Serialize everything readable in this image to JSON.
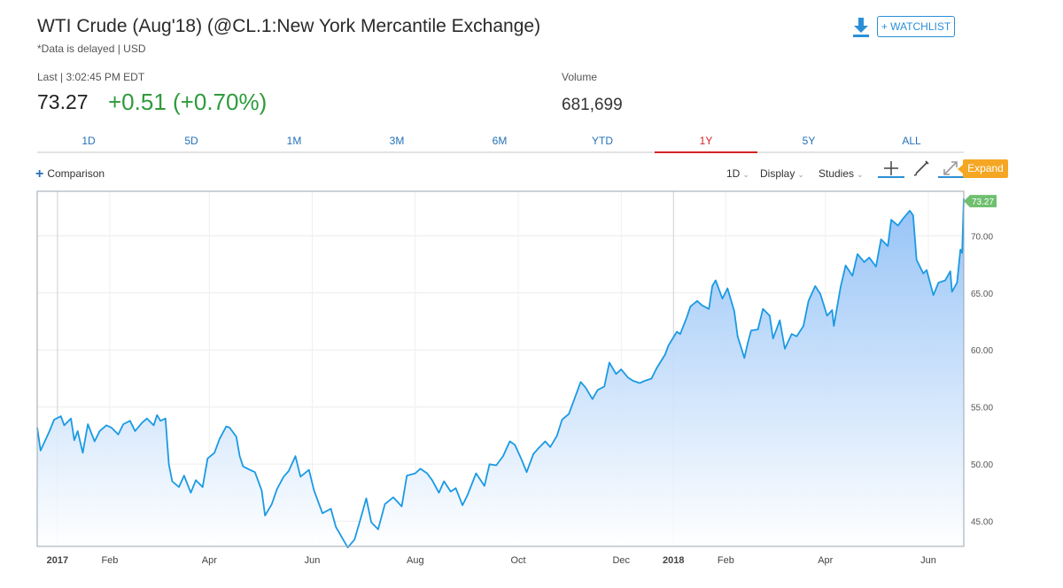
{
  "header": {
    "title": "WTI Crude (Aug'18) (@CL.1:New York Mercantile Exchange)",
    "subtitle": "*Data is delayed | USD",
    "last_label": "Last | 3:02:45 PM EDT",
    "last_price": "73.27",
    "change": "+0.51 (+0.70%)",
    "volume_label": "Volume",
    "volume_value": "681,699",
    "watchlist_label": "+ WATCHLIST",
    "change_color": "#2e9b3c"
  },
  "tabs": [
    {
      "label": "1D",
      "active": false
    },
    {
      "label": "5D",
      "active": false
    },
    {
      "label": "1M",
      "active": false
    },
    {
      "label": "3M",
      "active": false
    },
    {
      "label": "6M",
      "active": false
    },
    {
      "label": "YTD",
      "active": false
    },
    {
      "label": "1Y",
      "active": true
    },
    {
      "label": "5Y",
      "active": false
    },
    {
      "label": "ALL",
      "active": false
    }
  ],
  "toolbar": {
    "comparison": "Comparison",
    "interval": "1D",
    "display": "Display",
    "studies": "Studies",
    "expand": "Expand",
    "tools": [
      "crosshair-icon",
      "pencil-icon",
      "expand-arrows-icon"
    ]
  },
  "chart_data": {
    "type": "area",
    "ylim": [
      42.8,
      73.9
    ],
    "x_range": [
      "2016-12-20",
      "2018-06-22"
    ],
    "yticks": [
      45,
      50,
      55,
      60,
      65,
      70
    ],
    "ytick_labels": [
      "45.00",
      "50.00",
      "55.00",
      "60.00",
      "65.00",
      "70.00"
    ],
    "xticks": [
      {
        "label": "2017",
        "date": "2017-01-01",
        "bold": true
      },
      {
        "label": "Feb",
        "date": "2017-02-01",
        "bold": false
      },
      {
        "label": "Apr",
        "date": "2017-04-01",
        "bold": false
      },
      {
        "label": "Jun",
        "date": "2017-06-01",
        "bold": false
      },
      {
        "label": "Aug",
        "date": "2017-08-01",
        "bold": false
      },
      {
        "label": "Oct",
        "date": "2017-10-01",
        "bold": false
      },
      {
        "label": "Dec",
        "date": "2017-12-01",
        "bold": false
      },
      {
        "label": "2018",
        "date": "2018-01-01",
        "bold": true
      },
      {
        "label": "Feb",
        "date": "2018-02-01",
        "bold": false
      },
      {
        "label": "Apr",
        "date": "2018-04-01",
        "bold": false
      },
      {
        "label": "Jun",
        "date": "2018-06-01",
        "bold": false
      }
    ],
    "last_value_label": "73.27",
    "line_color": "#1a9ae3",
    "fill_top_color": "#8fbff6",
    "last_label_color": "#6fbf6f",
    "series": [
      {
        "points": [
          [
            "2016-12-20",
            53.2
          ],
          [
            "2016-12-22",
            51.2
          ],
          [
            "2016-12-27",
            52.8
          ],
          [
            "2016-12-30",
            53.9
          ],
          [
            "2017-01-03",
            54.2
          ],
          [
            "2017-01-05",
            53.4
          ],
          [
            "2017-01-09",
            54.0
          ],
          [
            "2017-01-11",
            52.1
          ],
          [
            "2017-01-13",
            52.9
          ],
          [
            "2017-01-16",
            51.0
          ],
          [
            "2017-01-19",
            53.5
          ],
          [
            "2017-01-23",
            52.0
          ],
          [
            "2017-01-26",
            52.9
          ],
          [
            "2017-01-30",
            53.4
          ],
          [
            "2017-02-02",
            53.2
          ],
          [
            "2017-02-06",
            52.6
          ],
          [
            "2017-02-09",
            53.5
          ],
          [
            "2017-02-13",
            53.8
          ],
          [
            "2017-02-16",
            52.9
          ],
          [
            "2017-02-20",
            53.6
          ],
          [
            "2017-02-23",
            54.0
          ],
          [
            "2017-02-27",
            53.4
          ],
          [
            "2017-03-01",
            54.3
          ],
          [
            "2017-03-03",
            53.8
          ],
          [
            "2017-03-06",
            54.0
          ],
          [
            "2017-03-08",
            50.0
          ],
          [
            "2017-03-10",
            48.5
          ],
          [
            "2017-03-14",
            48.0
          ],
          [
            "2017-03-17",
            49.0
          ],
          [
            "2017-03-21",
            47.5
          ],
          [
            "2017-03-24",
            48.6
          ],
          [
            "2017-03-28",
            48.0
          ],
          [
            "2017-03-31",
            50.5
          ],
          [
            "2017-04-04",
            51.0
          ],
          [
            "2017-04-07",
            52.2
          ],
          [
            "2017-04-11",
            53.3
          ],
          [
            "2017-04-13",
            53.2
          ],
          [
            "2017-04-17",
            52.4
          ],
          [
            "2017-04-19",
            50.7
          ],
          [
            "2017-04-21",
            49.8
          ],
          [
            "2017-04-25",
            49.5
          ],
          [
            "2017-04-28",
            49.3
          ],
          [
            "2017-05-02",
            47.7
          ],
          [
            "2017-05-04",
            45.5
          ],
          [
            "2017-05-08",
            46.5
          ],
          [
            "2017-05-11",
            47.8
          ],
          [
            "2017-05-15",
            48.9
          ],
          [
            "2017-05-18",
            49.4
          ],
          [
            "2017-05-22",
            50.7
          ],
          [
            "2017-05-25",
            48.9
          ],
          [
            "2017-05-30",
            49.5
          ],
          [
            "2017-06-02",
            47.7
          ],
          [
            "2017-06-07",
            45.7
          ],
          [
            "2017-06-12",
            46.1
          ],
          [
            "2017-06-15",
            44.5
          ],
          [
            "2017-06-20",
            43.2
          ],
          [
            "2017-06-22",
            42.7
          ],
          [
            "2017-06-26",
            43.4
          ],
          [
            "2017-06-29",
            44.9
          ],
          [
            "2017-07-03",
            47.0
          ],
          [
            "2017-07-06",
            44.9
          ],
          [
            "2017-07-10",
            44.3
          ],
          [
            "2017-07-14",
            46.5
          ],
          [
            "2017-07-19",
            47.1
          ],
          [
            "2017-07-24",
            46.3
          ],
          [
            "2017-07-27",
            49.0
          ],
          [
            "2017-08-01",
            49.2
          ],
          [
            "2017-08-04",
            49.6
          ],
          [
            "2017-08-08",
            49.2
          ],
          [
            "2017-08-11",
            48.6
          ],
          [
            "2017-08-15",
            47.5
          ],
          [
            "2017-08-18",
            48.5
          ],
          [
            "2017-08-22",
            47.6
          ],
          [
            "2017-08-25",
            47.9
          ],
          [
            "2017-08-29",
            46.4
          ],
          [
            "2017-09-01",
            47.3
          ],
          [
            "2017-09-06",
            49.2
          ],
          [
            "2017-09-11",
            48.1
          ],
          [
            "2017-09-14",
            50.0
          ],
          [
            "2017-09-18",
            49.9
          ],
          [
            "2017-09-22",
            50.7
          ],
          [
            "2017-09-26",
            52.0
          ],
          [
            "2017-09-29",
            51.7
          ],
          [
            "2017-10-03",
            50.4
          ],
          [
            "2017-10-06",
            49.3
          ],
          [
            "2017-10-10",
            50.9
          ],
          [
            "2017-10-13",
            51.4
          ],
          [
            "2017-10-17",
            52.0
          ],
          [
            "2017-10-20",
            51.5
          ],
          [
            "2017-10-24",
            52.5
          ],
          [
            "2017-10-27",
            53.9
          ],
          [
            "2017-10-31",
            54.4
          ],
          [
            "2017-11-03",
            55.6
          ],
          [
            "2017-11-07",
            57.2
          ],
          [
            "2017-11-10",
            56.7
          ],
          [
            "2017-11-14",
            55.7
          ],
          [
            "2017-11-17",
            56.5
          ],
          [
            "2017-11-21",
            56.8
          ],
          [
            "2017-11-24",
            58.9
          ],
          [
            "2017-11-28",
            57.9
          ],
          [
            "2017-12-01",
            58.3
          ],
          [
            "2017-12-05",
            57.6
          ],
          [
            "2017-12-08",
            57.3
          ],
          [
            "2017-12-12",
            57.1
          ],
          [
            "2017-12-15",
            57.3
          ],
          [
            "2017-12-19",
            57.5
          ],
          [
            "2017-12-22",
            58.4
          ],
          [
            "2017-12-27",
            59.6
          ],
          [
            "2017-12-29",
            60.4
          ],
          [
            "2018-01-03",
            61.6
          ],
          [
            "2018-01-05",
            61.4
          ],
          [
            "2018-01-09",
            62.9
          ],
          [
            "2018-01-11",
            63.8
          ],
          [
            "2018-01-15",
            64.3
          ],
          [
            "2018-01-18",
            63.9
          ],
          [
            "2018-01-22",
            63.6
          ],
          [
            "2018-01-24",
            65.6
          ],
          [
            "2018-01-26",
            66.1
          ],
          [
            "2018-01-30",
            64.5
          ],
          [
            "2018-02-02",
            65.4
          ],
          [
            "2018-02-06",
            63.4
          ],
          [
            "2018-02-08",
            61.2
          ],
          [
            "2018-02-12",
            59.3
          ],
          [
            "2018-02-14",
            60.6
          ],
          [
            "2018-02-16",
            61.7
          ],
          [
            "2018-02-20",
            61.8
          ],
          [
            "2018-02-23",
            63.6
          ],
          [
            "2018-02-27",
            63.0
          ],
          [
            "2018-03-01",
            61.0
          ],
          [
            "2018-03-05",
            62.6
          ],
          [
            "2018-03-08",
            60.1
          ],
          [
            "2018-03-12",
            61.4
          ],
          [
            "2018-03-15",
            61.2
          ],
          [
            "2018-03-19",
            62.1
          ],
          [
            "2018-03-22",
            64.3
          ],
          [
            "2018-03-26",
            65.6
          ],
          [
            "2018-03-29",
            64.9
          ],
          [
            "2018-04-02",
            63.0
          ],
          [
            "2018-04-05",
            63.5
          ],
          [
            "2018-04-06",
            62.1
          ],
          [
            "2018-04-10",
            65.5
          ],
          [
            "2018-04-13",
            67.4
          ],
          [
            "2018-04-17",
            66.5
          ],
          [
            "2018-04-20",
            68.4
          ],
          [
            "2018-04-24",
            67.7
          ],
          [
            "2018-04-27",
            68.1
          ],
          [
            "2018-05-01",
            67.3
          ],
          [
            "2018-05-04",
            69.7
          ],
          [
            "2018-05-08",
            69.1
          ],
          [
            "2018-05-10",
            71.4
          ],
          [
            "2018-05-14",
            70.9
          ],
          [
            "2018-05-17",
            71.5
          ],
          [
            "2018-05-21",
            72.2
          ],
          [
            "2018-05-23",
            71.8
          ],
          [
            "2018-05-25",
            67.9
          ],
          [
            "2018-05-29",
            66.7
          ],
          [
            "2018-05-31",
            67.0
          ],
          [
            "2018-06-04",
            64.8
          ],
          [
            "2018-06-07",
            65.9
          ],
          [
            "2018-06-11",
            66.1
          ],
          [
            "2018-06-14",
            66.9
          ],
          [
            "2018-06-15",
            65.1
          ],
          [
            "2018-06-18",
            65.9
          ],
          [
            "2018-06-20",
            68.8
          ],
          [
            "2018-06-21",
            68.5
          ],
          [
            "2018-06-22",
            73.27
          ]
        ]
      }
    ]
  }
}
